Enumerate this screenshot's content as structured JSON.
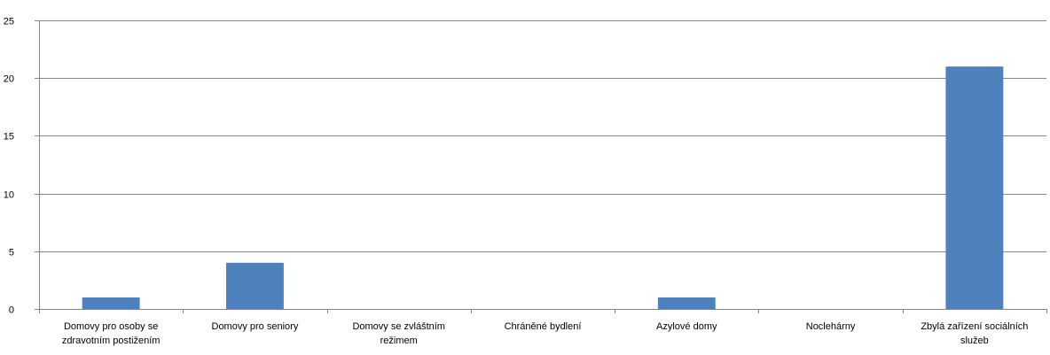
{
  "chart_data": {
    "type": "bar",
    "title": "",
    "xlabel": "",
    "ylabel": "",
    "categories": [
      "Domovy pro osoby se zdravotním postižením",
      "Domovy pro seniory",
      "Domovy se zvláštním režimem",
      "Chráněné bydlení",
      "Azylové domy",
      "Noclehárny",
      "Zbylá zařízení sociálních služeb"
    ],
    "category_lines": [
      [
        "Domovy pro osoby se",
        "zdravotním postižením"
      ],
      [
        "Domovy pro seniory"
      ],
      [
        "Domovy se zvláštním",
        "režimem"
      ],
      [
        "Chráněné bydlení"
      ],
      [
        "Azylové domy"
      ],
      [
        "Noclehárny"
      ],
      [
        "Zbylá zařízení sociálních",
        "služeb"
      ]
    ],
    "values": [
      1,
      4,
      0,
      0,
      1,
      0,
      21
    ],
    "ylim": [
      0,
      25
    ],
    "yticks": [
      0,
      5,
      10,
      15,
      20,
      25
    ],
    "grid": true,
    "legend": "none",
    "colors": {
      "bar": "#4F81BD",
      "grid": "#868686",
      "axis": "#868686"
    }
  }
}
